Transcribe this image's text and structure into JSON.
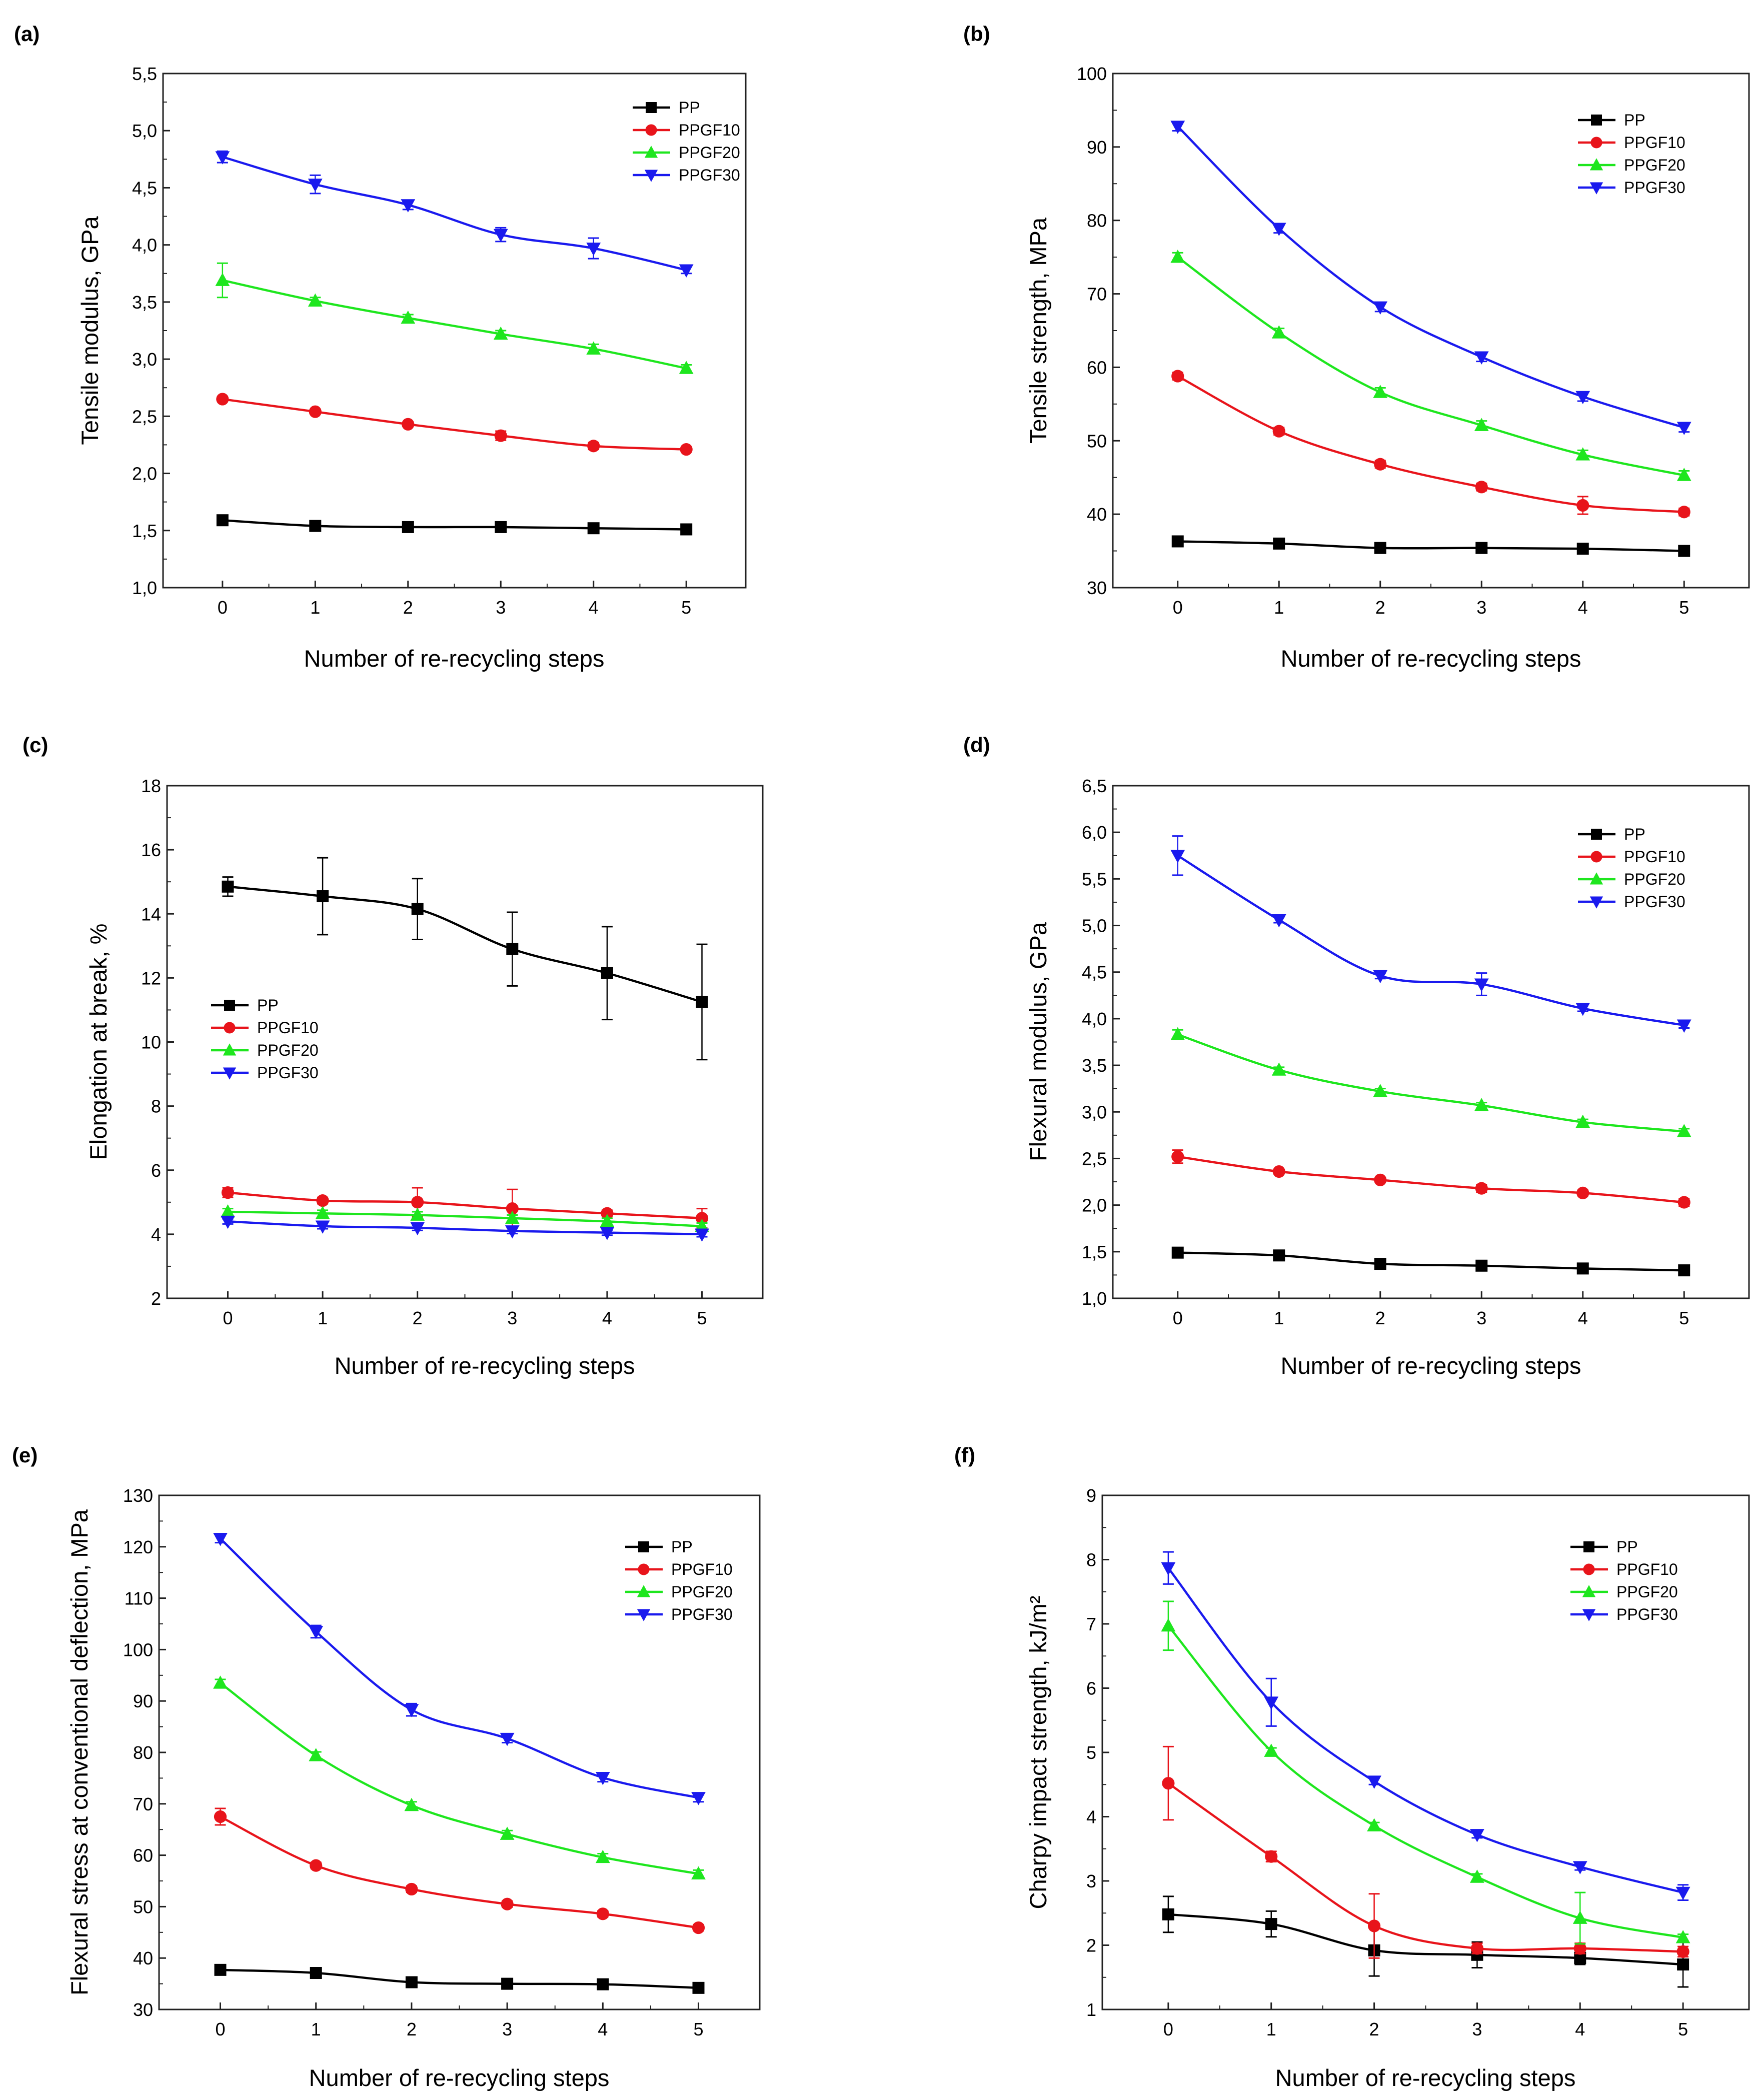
{
  "figure": {
    "x_categories": [
      "0",
      "1",
      "2",
      "3",
      "4",
      "5"
    ],
    "colors": {
      "PP": "#000000",
      "PPGF10": "#e8141b",
      "PPGF20": "#1ee61e",
      "PPGF30": "#1a1aee"
    },
    "marker_shapes": {
      "PP": "square",
      "PPGF10": "circle",
      "PPGF20": "triangle-up",
      "PPGF30": "triangle-down"
    }
  },
  "chart_data": [
    {
      "panel_label": "(a)",
      "type": "line",
      "xlabel": "Number of re-recycling steps",
      "ylabel": "Tensile modulus, GPa",
      "x": [
        0,
        1,
        2,
        3,
        4,
        5
      ],
      "ylim": [
        1.0,
        5.5
      ],
      "yticks": [
        1.0,
        1.5,
        2.0,
        2.5,
        3.0,
        3.5,
        4.0,
        4.5,
        5.0,
        5.5
      ],
      "ytick_labels": [
        "1,0",
        "1,5",
        "2,0",
        "2,5",
        "3,0",
        "3,5",
        "4,0",
        "4,5",
        "5,0",
        "5,5"
      ],
      "legend_position": "top-right",
      "series": [
        {
          "name": "PP",
          "values": [
            1.59,
            1.54,
            1.53,
            1.53,
            1.52,
            1.51
          ],
          "errors": [
            0.02,
            0.02,
            0.02,
            0.02,
            0.02,
            0.02
          ]
        },
        {
          "name": "PPGF10",
          "values": [
            2.65,
            2.54,
            2.43,
            2.33,
            2.24,
            2.21
          ],
          "errors": [
            0.02,
            0.02,
            0.02,
            0.04,
            0.03,
            0.02
          ]
        },
        {
          "name": "PPGF20",
          "values": [
            3.69,
            3.51,
            3.36,
            3.22,
            3.09,
            2.92
          ],
          "errors": [
            0.15,
            0.03,
            0.03,
            0.03,
            0.04,
            0.03
          ]
        },
        {
          "name": "PPGF30",
          "values": [
            4.77,
            4.53,
            4.35,
            4.09,
            3.97,
            3.78
          ],
          "errors": [
            0.05,
            0.08,
            0.04,
            0.06,
            0.09,
            0.03
          ]
        }
      ]
    },
    {
      "panel_label": "(b)",
      "type": "line",
      "xlabel": "Number of re-recycling steps",
      "ylabel": "Tensile strength, MPa",
      "x": [
        0,
        1,
        2,
        3,
        4,
        5
      ],
      "ylim": [
        30,
        100
      ],
      "yticks": [
        30,
        40,
        50,
        60,
        70,
        80,
        90,
        100
      ],
      "ytick_labels": [
        "30",
        "40",
        "50",
        "60",
        "70",
        "80",
        "90",
        "100"
      ],
      "legend_position": "top-right",
      "series": [
        {
          "name": "PP",
          "values": [
            36.3,
            36.0,
            35.4,
            35.4,
            35.3,
            35.0
          ],
          "errors": [
            0.3,
            0.3,
            0.3,
            0.3,
            0.3,
            0.3
          ]
        },
        {
          "name": "PPGF10",
          "values": [
            58.8,
            51.3,
            46.8,
            43.7,
            41.2,
            40.3
          ],
          "errors": [
            0.5,
            0.5,
            0.5,
            0.5,
            1.2,
            0.5
          ]
        },
        {
          "name": "PPGF20",
          "values": [
            75.0,
            64.7,
            56.6,
            52.1,
            48.1,
            45.3
          ],
          "errors": [
            0.6,
            0.6,
            0.6,
            0.6,
            0.6,
            0.6
          ]
        },
        {
          "name": "PPGF30",
          "values": [
            92.8,
            78.9,
            68.2,
            61.4,
            56.0,
            51.8
          ],
          "errors": [
            0.6,
            0.6,
            0.6,
            0.6,
            0.6,
            0.6
          ]
        }
      ]
    },
    {
      "panel_label": "(c)",
      "type": "line",
      "xlabel": "Number of re-recycling steps",
      "ylabel": "Elongation at break, %",
      "x": [
        0,
        1,
        2,
        3,
        4,
        5
      ],
      "ylim": [
        2,
        18
      ],
      "yticks": [
        2,
        4,
        6,
        8,
        10,
        12,
        14,
        16,
        18
      ],
      "ytick_labels": [
        "2",
        "4",
        "6",
        "8",
        "10",
        "12",
        "14",
        "16",
        "18"
      ],
      "legend_position": "center-left",
      "series": [
        {
          "name": "PP",
          "values": [
            14.85,
            14.55,
            14.15,
            12.9,
            12.15,
            11.25
          ],
          "errors": [
            0.3,
            1.2,
            0.95,
            1.15,
            1.45,
            1.8
          ]
        },
        {
          "name": "PPGF10",
          "values": [
            5.3,
            5.05,
            5.0,
            4.8,
            4.65,
            4.5
          ],
          "errors": [
            0.15,
            0.1,
            0.45,
            0.6,
            0.1,
            0.3
          ]
        },
        {
          "name": "PPGF20",
          "values": [
            4.7,
            4.65,
            4.6,
            4.5,
            4.4,
            4.25
          ],
          "errors": [
            0.1,
            0.1,
            0.1,
            0.1,
            0.1,
            0.1
          ]
        },
        {
          "name": "PPGF30",
          "values": [
            4.4,
            4.25,
            4.2,
            4.1,
            4.05,
            4.0
          ],
          "errors": [
            0.08,
            0.08,
            0.08,
            0.08,
            0.08,
            0.08
          ]
        }
      ]
    },
    {
      "panel_label": "(d)",
      "type": "line",
      "xlabel": "Number of re-recycling steps",
      "ylabel": "Flexural modulus, GPa",
      "x": [
        0,
        1,
        2,
        3,
        4,
        5
      ],
      "ylim": [
        1.0,
        6.5
      ],
      "yticks": [
        1.0,
        1.5,
        2.0,
        2.5,
        3.0,
        3.5,
        4.0,
        4.5,
        5.0,
        5.5,
        6.0,
        6.5
      ],
      "ytick_labels": [
        "1,0",
        "1,5",
        "2,0",
        "2,5",
        "3,0",
        "3,5",
        "4,0",
        "4,5",
        "5,0",
        "5,5",
        "6,0",
        "6,5"
      ],
      "legend_position": "top-right",
      "series": [
        {
          "name": "PP",
          "values": [
            1.49,
            1.46,
            1.37,
            1.35,
            1.32,
            1.3
          ],
          "errors": [
            0.02,
            0.02,
            0.03,
            0.02,
            0.02,
            0.02
          ]
        },
        {
          "name": "PPGF10",
          "values": [
            2.52,
            2.36,
            2.27,
            2.18,
            2.13,
            2.03
          ],
          "errors": [
            0.07,
            0.02,
            0.02,
            0.04,
            0.03,
            0.04
          ]
        },
        {
          "name": "PPGF20",
          "values": [
            3.83,
            3.45,
            3.22,
            3.07,
            2.89,
            2.79
          ],
          "errors": [
            0.05,
            0.03,
            0.03,
            0.03,
            0.03,
            0.03
          ]
        },
        {
          "name": "PPGF30",
          "values": [
            5.75,
            5.06,
            4.46,
            4.37,
            4.11,
            3.93
          ],
          "errors": [
            0.21,
            0.03,
            0.03,
            0.12,
            0.03,
            0.03
          ]
        }
      ]
    },
    {
      "panel_label": "(e)",
      "type": "line",
      "xlabel": "Number of re-recycling steps",
      "ylabel": "Flexural stress at conventional deflection, MPa",
      "x": [
        0,
        1,
        2,
        3,
        4,
        5
      ],
      "ylim": [
        30,
        130
      ],
      "yticks": [
        30,
        40,
        50,
        60,
        70,
        80,
        90,
        100,
        110,
        120,
        130
      ],
      "ytick_labels": [
        "30",
        "40",
        "50",
        "60",
        "70",
        "80",
        "90",
        "100",
        "110",
        "120",
        "130"
      ],
      "legend_position": "top-right",
      "series": [
        {
          "name": "PP",
          "values": [
            37.7,
            37.1,
            35.3,
            35.0,
            34.9,
            34.2
          ],
          "errors": [
            0.4,
            0.4,
            0.4,
            0.4,
            0.4,
            0.4
          ]
        },
        {
          "name": "PPGF10",
          "values": [
            67.5,
            58.0,
            53.4,
            50.5,
            48.6,
            45.9
          ],
          "errors": [
            1.6,
            0.6,
            0.6,
            0.6,
            0.6,
            0.6
          ]
        },
        {
          "name": "PPGF20",
          "values": [
            93.5,
            79.4,
            69.7,
            64.1,
            59.6,
            56.4
          ],
          "errors": [
            0.7,
            0.7,
            0.7,
            0.7,
            0.7,
            0.7
          ]
        },
        {
          "name": "PPGF30",
          "values": [
            121.6,
            103.5,
            88.3,
            82.7,
            75.1,
            71.2
          ],
          "errors": [
            0.8,
            1.2,
            1.2,
            0.8,
            0.8,
            0.8
          ]
        }
      ]
    },
    {
      "panel_label": "(f)",
      "type": "line",
      "xlabel": "Number of re-recycling steps",
      "ylabel": "Charpy impact strength, kJ/m²",
      "x": [
        0,
        1,
        2,
        3,
        4,
        5
      ],
      "ylim": [
        1,
        9
      ],
      "yticks": [
        1,
        2,
        3,
        4,
        5,
        6,
        7,
        8,
        9
      ],
      "ytick_labels": [
        "1",
        "2",
        "3",
        "4",
        "5",
        "6",
        "7",
        "8",
        "9"
      ],
      "legend_position": "top-right",
      "series": [
        {
          "name": "PP",
          "values": [
            2.48,
            2.33,
            1.92,
            1.85,
            1.8,
            1.7
          ],
          "errors": [
            0.28,
            0.2,
            0.4,
            0.2,
            0.1,
            0.35
          ]
        },
        {
          "name": "PPGF10",
          "values": [
            4.52,
            3.38,
            2.3,
            1.95,
            1.95,
            1.9
          ],
          "errors": [
            0.57,
            0.08,
            0.5,
            0.08,
            0.08,
            0.08
          ]
        },
        {
          "name": "PPGF20",
          "values": [
            6.97,
            5.02,
            3.86,
            3.06,
            2.42,
            2.12
          ],
          "errors": [
            0.38,
            0.05,
            0.05,
            0.05,
            0.4,
            0.05
          ]
        },
        {
          "name": "PPGF30",
          "values": [
            7.87,
            5.78,
            4.55,
            3.72,
            3.22,
            2.82
          ],
          "errors": [
            0.25,
            0.37,
            0.05,
            0.05,
            0.05,
            0.12
          ]
        }
      ]
    }
  ]
}
